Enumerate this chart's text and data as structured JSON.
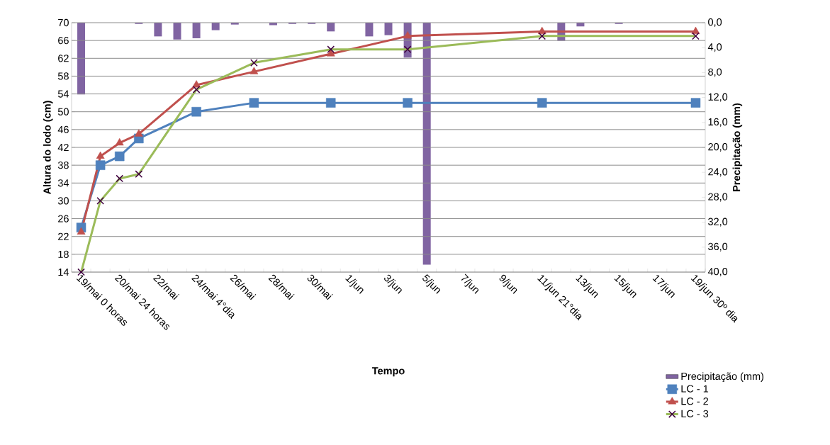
{
  "chart_data": {
    "type": "line",
    "xlabel": "Tempo",
    "ylabel": "Altura do lodo (cm)",
    "y2label": "Precipitação (mm)",
    "categories": [
      "19/mai 0 horas",
      null,
      "20/mai 24 horas",
      null,
      "22/mai",
      null,
      "24/mai 4°dia",
      null,
      "26/mai",
      null,
      "28/mai",
      null,
      "30/mai",
      null,
      "1/jun",
      null,
      "3/jun",
      null,
      "5/jun",
      null,
      "7/jun",
      null,
      "9/jun",
      null,
      "11/jun 21°dia",
      null,
      "13/jun",
      null,
      "15/jun",
      null,
      "17/jun",
      null,
      "19/jun 30º dia"
    ],
    "ylim": [
      14,
      70
    ],
    "yticks": [
      14,
      18,
      22,
      26,
      30,
      34,
      38,
      42,
      46,
      50,
      54,
      58,
      62,
      66,
      70
    ],
    "y2lim": [
      40,
      0
    ],
    "y2ticks": [
      {
        "value": 0,
        "label": "0,0"
      },
      {
        "value": 4,
        "label": "4,0"
      },
      {
        "value": 8,
        "label": "8,0"
      },
      {
        "value": 12,
        "label": "12,0"
      },
      {
        "value": 16,
        "label": "16,0"
      },
      {
        "value": 20,
        "label": "20,0"
      },
      {
        "value": 24,
        "label": "24,0"
      },
      {
        "value": 28,
        "label": "28,0"
      },
      {
        "value": 32,
        "label": "32,0"
      },
      {
        "value": 36,
        "label": "36,0"
      },
      {
        "value": 40,
        "label": "40,0"
      }
    ],
    "grid": "y",
    "legend": "bottom right",
    "series": [
      {
        "name": "Precipitação (mm)",
        "type": "bar",
        "axis": "y2",
        "color": "#8064a2",
        "values": [
          11.5,
          null,
          null,
          0.2,
          2.2,
          2.7,
          2.5,
          1.2,
          0.3,
          null,
          0.4,
          0.2,
          0.2,
          1.4,
          null,
          2.2,
          2.0,
          5.6,
          38.8,
          null,
          null,
          null,
          null,
          null,
          null,
          2.9,
          0.6,
          null,
          0.2,
          null,
          null,
          null,
          null
        ]
      },
      {
        "name": "LC - 1",
        "color": "#4f81bd",
        "marker": "square",
        "values": [
          24,
          38,
          40,
          44,
          null,
          null,
          50,
          null,
          null,
          52,
          null,
          null,
          null,
          52,
          null,
          null,
          null,
          52,
          null,
          null,
          null,
          null,
          null,
          null,
          52,
          null,
          null,
          null,
          null,
          null,
          null,
          null,
          52
        ]
      },
      {
        "name": "LC - 2",
        "color": "#c0504d",
        "marker": "triangle",
        "values": [
          23,
          40,
          43,
          45,
          null,
          null,
          56,
          null,
          null,
          59,
          null,
          null,
          null,
          63,
          null,
          null,
          null,
          67,
          null,
          null,
          null,
          null,
          null,
          null,
          68,
          null,
          null,
          null,
          null,
          null,
          null,
          null,
          68
        ]
      },
      {
        "name": "LC - 3",
        "color": "#9bbb59",
        "marker": "cross",
        "values": [
          14,
          30,
          35,
          36,
          null,
          null,
          55,
          null,
          null,
          61,
          null,
          null,
          null,
          64,
          null,
          null,
          null,
          64,
          null,
          null,
          null,
          null,
          null,
          null,
          67,
          null,
          null,
          null,
          null,
          null,
          null,
          null,
          67
        ]
      }
    ]
  }
}
